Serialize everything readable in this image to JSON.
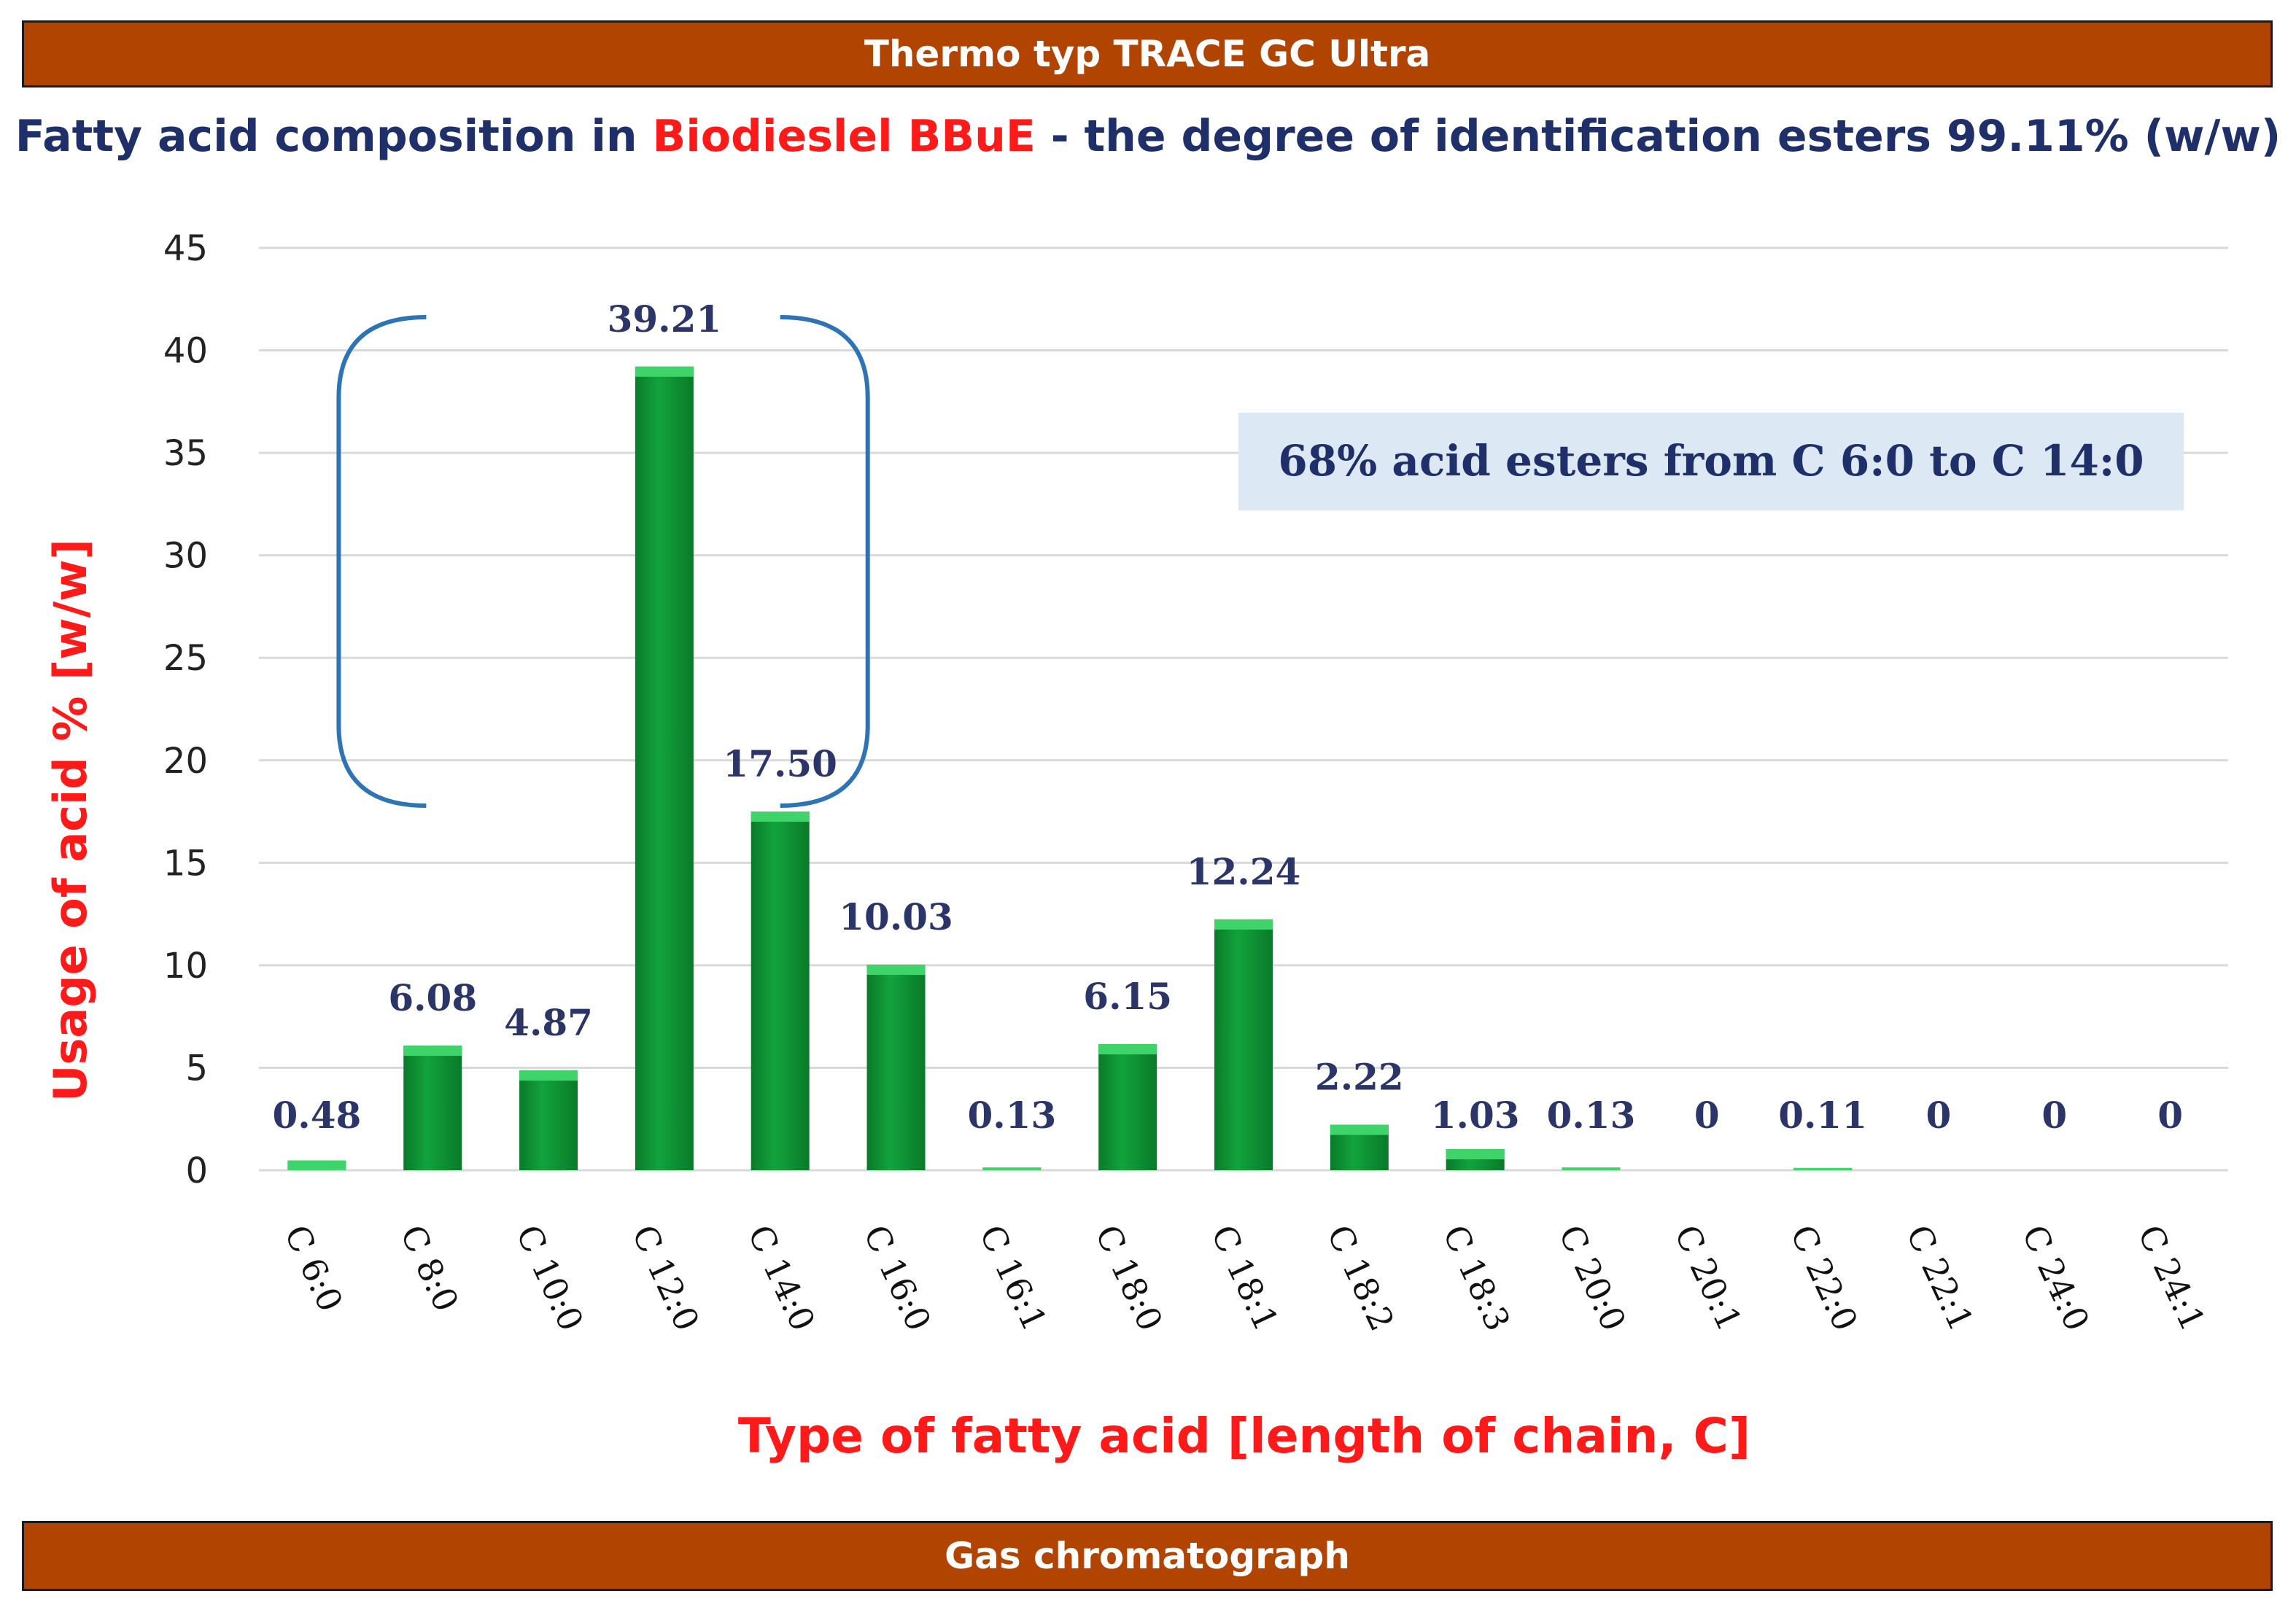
{
  "header": {
    "banner": "Thermo typ TRACE  GC Ultra"
  },
  "footer": {
    "banner": "Gas chromatograph"
  },
  "title": {
    "part1": "Fatty acid composition in ",
    "part2": "Biodieslel BBuE",
    "part3": " - the degree of identification esters 99.11% (w/w)"
  },
  "annotation": "68% acid esters from C 6:0 to C 14:0",
  "colors": {
    "bar": "#12a33c",
    "bar_light": "#3fd46a",
    "bar_dark": "#0a7a2a",
    "bracket": "#2e74b5",
    "annot_bg": "#dce9f5",
    "grid": "#d9d9d9",
    "axis_title": "#ff1a1a"
  },
  "chart_data": {
    "type": "bar",
    "title": "Fatty acid composition in Biodieslel BBuE - the degree of identification esters 99.11% (w/w)",
    "xlabel": "Type of fatty acid  [length of chain,  C]",
    "ylabel": "Usage of acid %  [w/w]",
    "ylim": [
      0,
      45
    ],
    "yticks": [
      0,
      5,
      10,
      15,
      20,
      25,
      30,
      35,
      40,
      45
    ],
    "grid": true,
    "categories": [
      "C 6:0",
      "C 8:0",
      "C 10:0",
      "C 12:0",
      "C 14:0",
      "C 16:0",
      "C 16:1",
      "C 18:0",
      "C 18:1",
      "C 18:2",
      "C 18:3",
      "C 20:0",
      "C 20:1",
      "C 22:0",
      "C 22:1",
      "C 24:0",
      "C 24:1"
    ],
    "values": [
      0.48,
      6.08,
      4.87,
      39.21,
      17.5,
      10.03,
      0.13,
      6.15,
      12.24,
      2.22,
      1.03,
      0.13,
      0,
      0.11,
      0,
      0,
      0
    ],
    "data_labels": [
      "0.48",
      "6.08",
      "4.87",
      "39.21",
      "17.50",
      "10.03",
      "0.13",
      "6.15",
      "12.24",
      "2.22",
      "1.03",
      "0.13",
      "0",
      "0.11",
      "0",
      "0",
      "0"
    ],
    "bracket_range": [
      "C 6:0",
      "C 14:0"
    ]
  }
}
